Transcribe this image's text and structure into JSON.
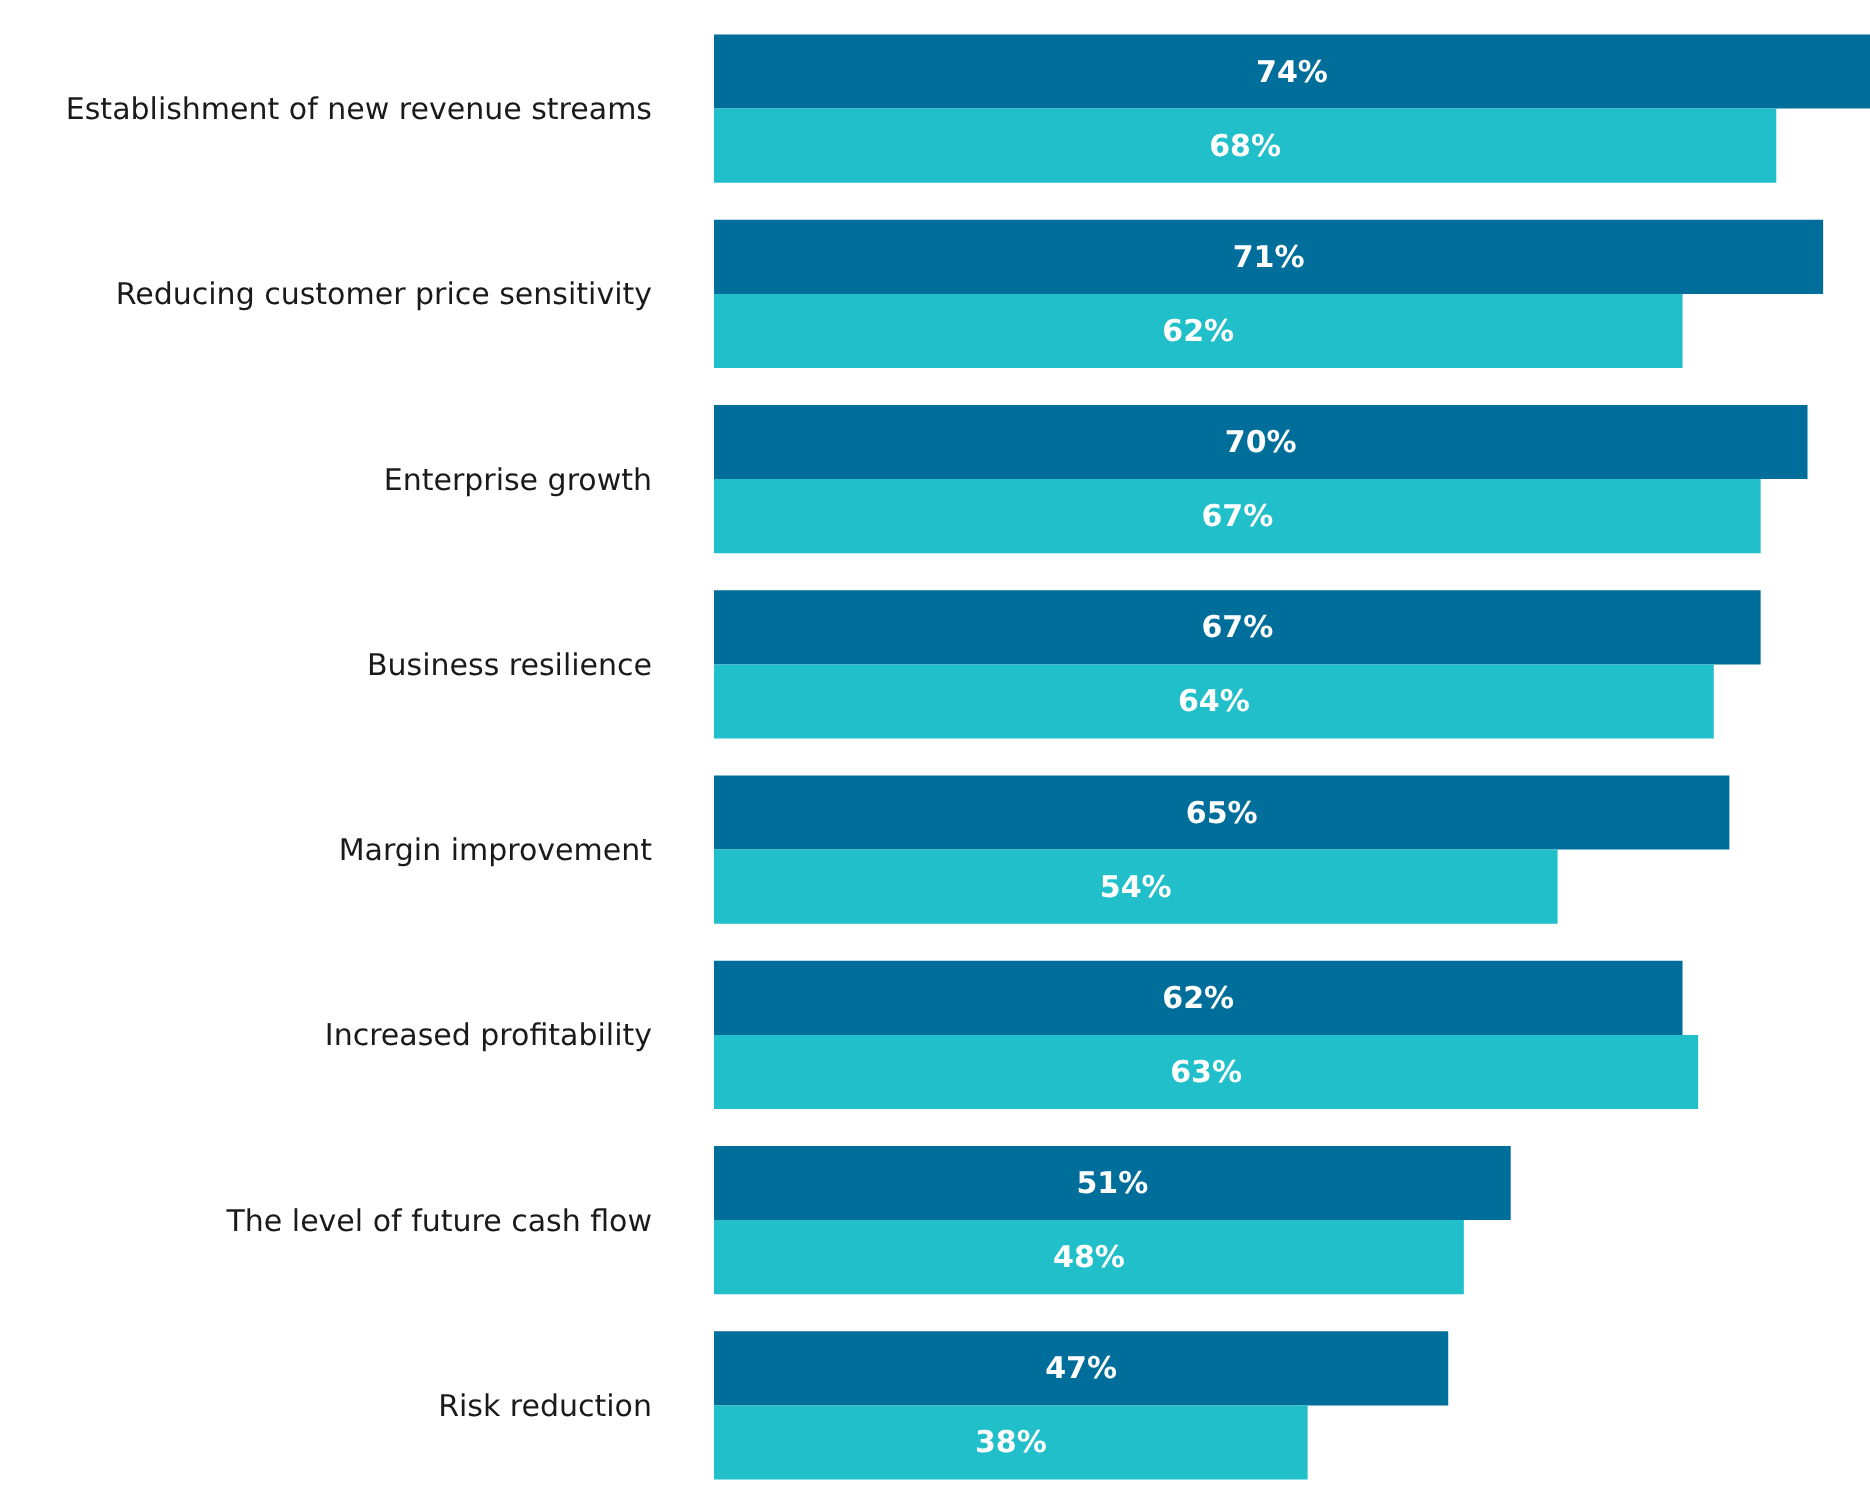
{
  "chart_data": {
    "type": "bar",
    "orientation": "horizontal",
    "legend": false,
    "tick_labels": "y",
    "categories": [
      "Establishment of new revenue streams",
      "Reducing customer price sensitivity",
      "Enterprise growth",
      "Business resilience",
      "Margin improvement",
      "Increased profitability",
      "The level of future cash flow",
      "Risk reduction"
    ],
    "series": [
      {
        "color": "#006e9a",
        "values": [
          74,
          71,
          70,
          67,
          65,
          62,
          51,
          47
        ],
        "value_labels": [
          "74%",
          "71%",
          "70%",
          "67%",
          "65%",
          "62%",
          "51%",
          "47%"
        ]
      },
      {
        "color": "#21bfca",
        "values": [
          68,
          62,
          67,
          64,
          54,
          63,
          48,
          38
        ],
        "value_labels": [
          "68%",
          "62%",
          "67%",
          "64%",
          "54%",
          "63%",
          "48%",
          "38%"
        ]
      }
    ]
  }
}
